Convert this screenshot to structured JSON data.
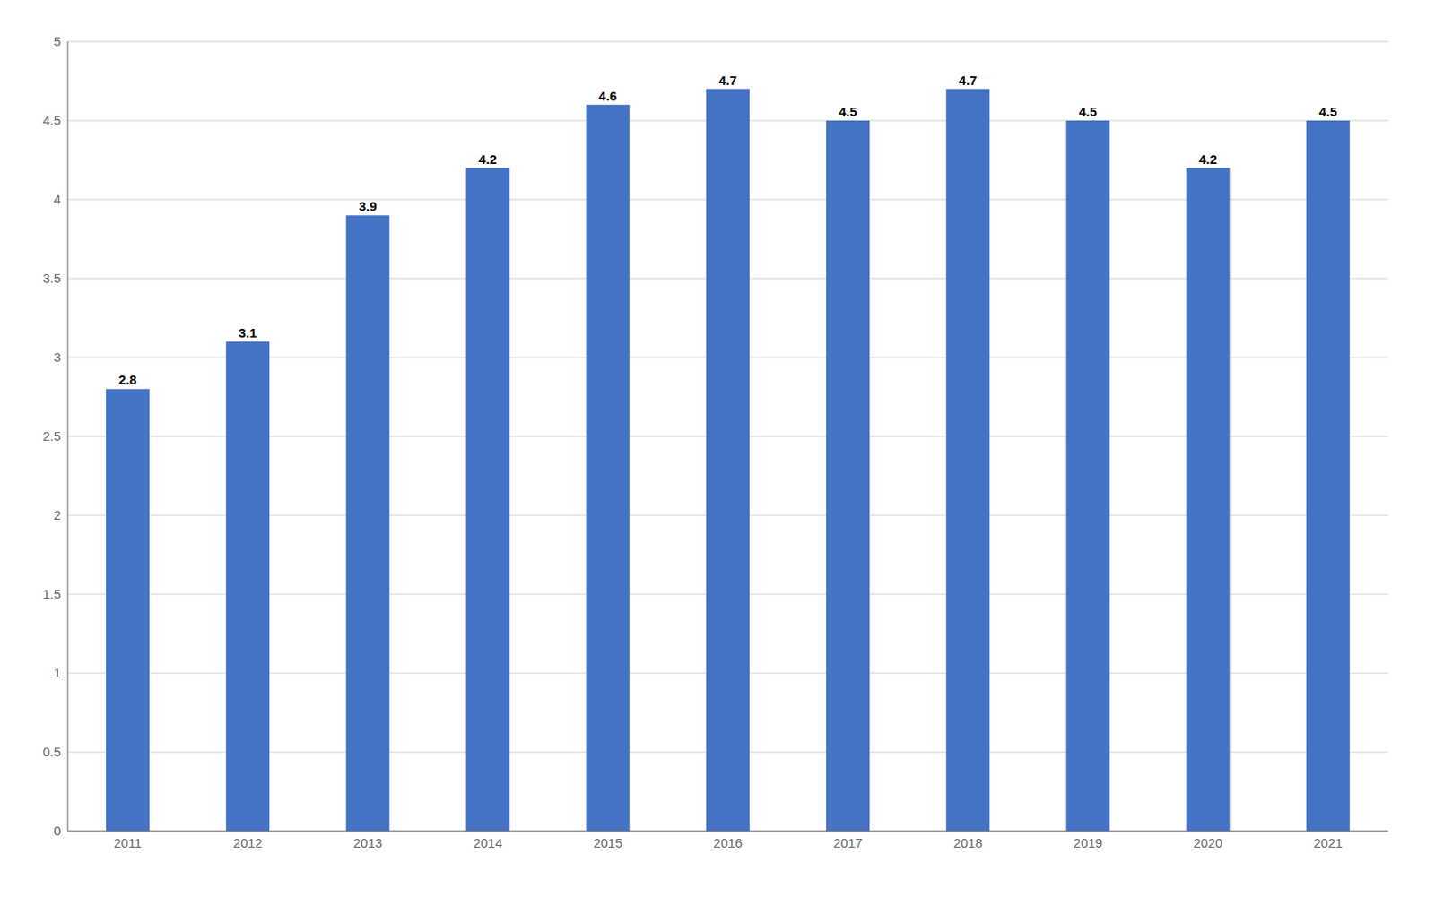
{
  "chart_data": {
    "type": "bar",
    "categories": [
      "2011",
      "2012",
      "2013",
      "2014",
      "2015",
      "2016",
      "2017",
      "2018",
      "2019",
      "2020",
      "2021"
    ],
    "values": [
      2.8,
      3.1,
      3.9,
      4.2,
      4.6,
      4.7,
      4.5,
      4.7,
      4.5,
      4.2,
      4.5
    ],
    "color": "#4472C4",
    "ylim": [
      0,
      5
    ],
    "yticks": [
      0,
      0.5,
      1,
      1.5,
      2,
      2.5,
      3,
      3.5,
      4,
      4.5,
      5
    ],
    "grid": true,
    "data_labels": true
  }
}
